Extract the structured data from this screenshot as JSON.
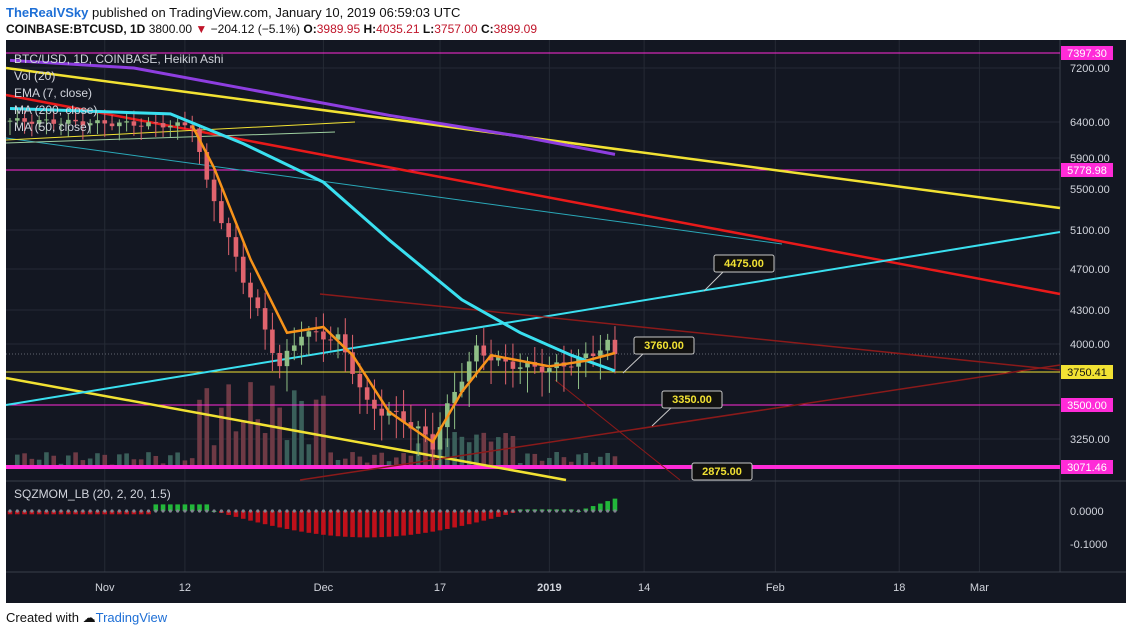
{
  "header": {
    "user": "TheRealVSky",
    "published": "published on TradingView.com, January 10, 2019 06:59:03 UTC",
    "symbol": "COINBASE:BTCUSD, 1D",
    "last": "3800.00",
    "change": "−204.12 (−5.1%)",
    "o_label": "O:",
    "o": "3989.95",
    "h_label": "H:",
    "h": "4035.21",
    "l_label": "L:",
    "l": "3757.00",
    "c_label": "C:",
    "c": "3899.09"
  },
  "legend": {
    "title": "BTC/USD, 1D, COINBASE, Heikin Ashi",
    "items": [
      "Vol (20)",
      "EMA (7, close)",
      "MA (200, close)",
      "MA (50, close)"
    ]
  },
  "osc_legend": "SQZMOM_LB (20, 2, 20, 1.5)",
  "footer": {
    "created": "Created with",
    "brand": "TradingView"
  },
  "colors": {
    "bg": "#131722",
    "grid": "#252a35",
    "axis_text": "#d1d4dc",
    "up": "#8fbf86",
    "down": "#e0646e",
    "ema7": "#f7931a",
    "ma200": "#8e3ee0",
    "ma50": "#3ae0f0",
    "yellow": "#f2e233",
    "red": "#e81a1a",
    "darkred": "#8b1a1a",
    "magenta": "#ff2bd8",
    "cyan": "#3ae0f0",
    "vol_up": "#3a5f5a",
    "vol_down": "#6e3a45"
  },
  "chart_data": {
    "type": "candlestick",
    "title": "BTC/USD, 1D, COINBASE, Heikin Ashi",
    "y_ticks": [
      "7200.00",
      "6400.00",
      "5900.00",
      "5500.00",
      "5100.00",
      "4700.00",
      "4300.00",
      "4000.00",
      "3250.00"
    ],
    "y_tick_values": [
      7200,
      6400,
      5900,
      5500,
      5100,
      4700,
      4300,
      4000,
      3250
    ],
    "x_ticks": [
      "Nov",
      "12",
      "Dec",
      "17",
      "2019",
      "14",
      "Feb",
      "18",
      "Mar"
    ],
    "price_tags": [
      {
        "label": "7397.30",
        "value": 7397.3,
        "style": "magenta"
      },
      {
        "label": "5778.98",
        "value": 5778.98,
        "style": "magenta"
      },
      {
        "label": "3750.41",
        "value": 3750.41,
        "style": "yellow"
      },
      {
        "label": "3500.00",
        "value": 3500,
        "style": "magenta"
      },
      {
        "label": "3071.46",
        "value": 3071.46,
        "style": "magenta"
      }
    ],
    "callouts": [
      {
        "label": "4475.00",
        "value": 4475,
        "date": "2019-01-20"
      },
      {
        "label": "3760.00",
        "value": 3760,
        "date": "2019-01-09"
      },
      {
        "label": "3350.00",
        "value": 3350,
        "date": "2019-01-15"
      },
      {
        "label": "2875.00",
        "value": 2875,
        "date": "2019-01-18"
      }
    ],
    "ha_candles_sample": [
      {
        "date": "2018-11-13",
        "o": 6390,
        "h": 6420,
        "l": 6300,
        "c": 6320
      },
      {
        "date": "2018-11-14",
        "o": 6300,
        "h": 6320,
        "l": 5500,
        "c": 5700
      },
      {
        "date": "2018-11-19",
        "o": 5200,
        "h": 5300,
        "l": 4400,
        "c": 4700
      },
      {
        "date": "2018-11-25",
        "o": 4000,
        "h": 4200,
        "l": 3500,
        "c": 3700
      },
      {
        "date": "2018-12-01",
        "o": 4000,
        "h": 4350,
        "l": 3900,
        "c": 4150
      },
      {
        "date": "2018-12-08",
        "o": 3600,
        "h": 3700,
        "l": 3250,
        "c": 3400
      },
      {
        "date": "2018-12-15",
        "o": 3250,
        "h": 3300,
        "l": 3130,
        "c": 3200
      },
      {
        "date": "2018-12-20",
        "o": 3700,
        "h": 4200,
        "l": 3650,
        "c": 4000
      },
      {
        "date": "2018-12-25",
        "o": 3900,
        "h": 4050,
        "l": 3700,
        "c": 3800
      },
      {
        "date": "2019-01-02",
        "o": 3800,
        "h": 3950,
        "l": 3750,
        "c": 3850
      },
      {
        "date": "2019-01-08",
        "o": 3950,
        "h": 4100,
        "l": 3900,
        "c": 4000
      },
      {
        "date": "2019-01-10",
        "o": 3990,
        "h": 4035,
        "l": 3757,
        "c": 3899
      }
    ],
    "oscillator": {
      "name": "SQZMOM_LB (20, 2, 20, 1.5)",
      "y_ticks": [
        "0.0000",
        "-0.1000"
      ],
      "y_tick_values": [
        0,
        -0.1
      ]
    }
  }
}
